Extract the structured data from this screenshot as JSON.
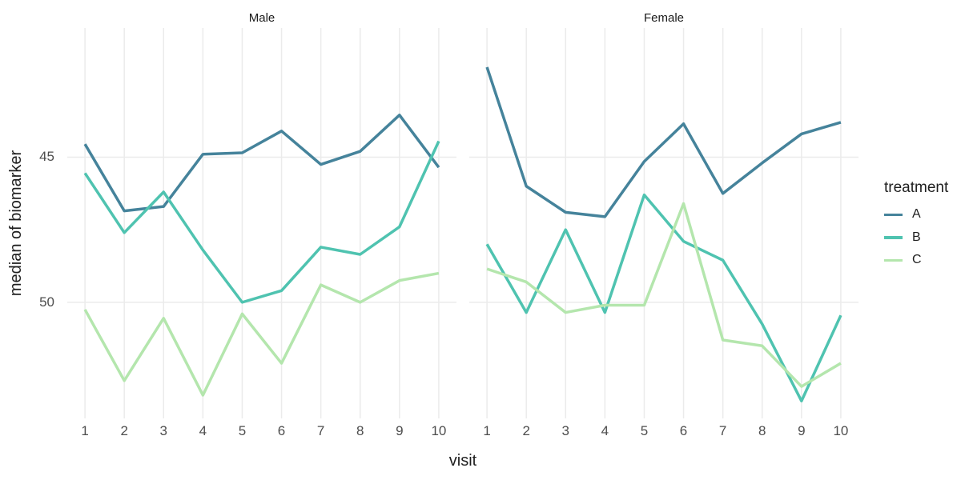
{
  "figure": {
    "background": "#ffffff"
  },
  "axes": {
    "x_title": "visit",
    "y_title": "median of biomarker",
    "x_tick_labels": [
      "1",
      "2",
      "3",
      "4",
      "5",
      "6",
      "7",
      "8",
      "9",
      "10"
    ],
    "y_tick_labels": [
      "45",
      "50"
    ]
  },
  "legend": {
    "title": "treatment",
    "items": [
      {
        "label": "A",
        "color": "#45839B"
      },
      {
        "label": "B",
        "color": "#4FC3B0"
      },
      {
        "label": "C",
        "color": "#B4E6AD"
      }
    ]
  },
  "chart_data": {
    "type": "line",
    "x": [
      1,
      2,
      3,
      4,
      5,
      6,
      7,
      8,
      9,
      10
    ],
    "xlabel": "visit",
    "ylabel": "median of biomarker",
    "xlim": [
      0.55,
      10.45
    ],
    "ylim": [
      41.0,
      54.45
    ],
    "yticks": [
      45,
      50
    ],
    "grid": "major-only",
    "grid_color": "#EBEBEB",
    "legend_title": "treatment",
    "legend_position": "right",
    "facets": [
      {
        "label": "Male",
        "series": [
          {
            "name": "A",
            "color": "#45839B",
            "values": [
              50.45,
              48.15,
              48.3,
              50.1,
              50.15,
              50.9,
              49.75,
              50.2,
              51.45,
              49.65
            ]
          },
          {
            "name": "B",
            "color": "#4FC3B0",
            "values": [
              49.45,
              47.4,
              48.8,
              46.8,
              45.0,
              45.4,
              46.9,
              46.65,
              47.6,
              50.55
            ]
          },
          {
            "name": "C",
            "color": "#B4E6AD",
            "values": [
              44.75,
              42.3,
              44.45,
              41.8,
              44.6,
              42.9,
              45.6,
              45.0,
              45.75,
              46.0
            ]
          }
        ]
      },
      {
        "label": "Female",
        "series": [
          {
            "name": "A",
            "color": "#45839B",
            "values": [
              53.1,
              49.0,
              48.1,
              47.95,
              49.85,
              51.15,
              48.75,
              49.8,
              50.8,
              51.2
            ]
          },
          {
            "name": "B",
            "color": "#4FC3B0",
            "values": [
              47.0,
              44.65,
              47.5,
              44.65,
              48.7,
              47.1,
              46.45,
              44.25,
              41.6,
              44.55
            ]
          },
          {
            "name": "C",
            "color": "#B4E6AD",
            "values": [
              46.15,
              45.7,
              44.65,
              44.9,
              44.9,
              48.4,
              43.7,
              43.5,
              42.1,
              42.9
            ]
          }
        ]
      }
    ]
  }
}
